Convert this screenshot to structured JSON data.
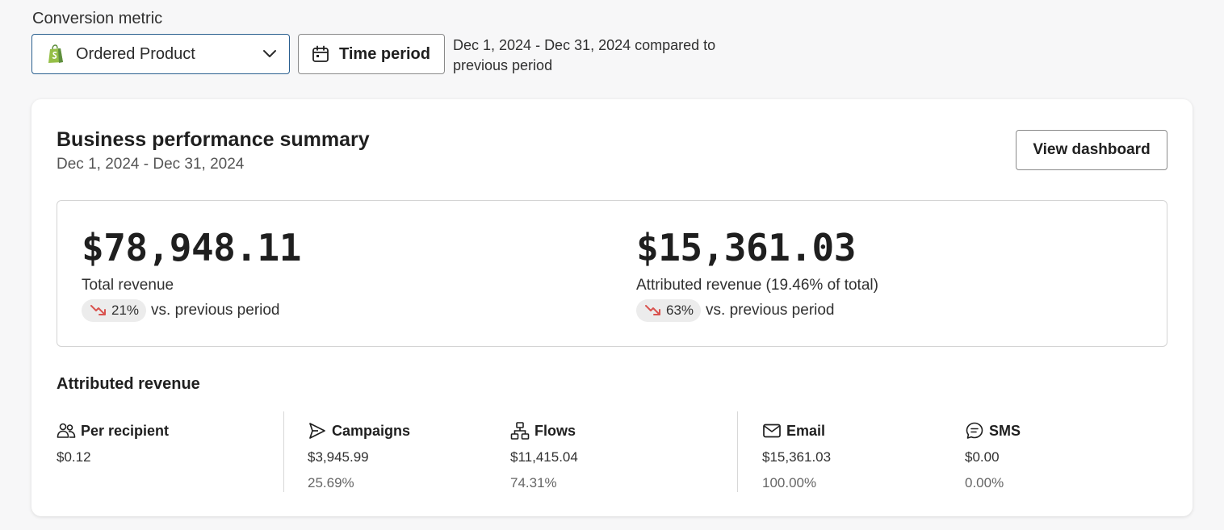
{
  "conversion_metric": {
    "label": "Conversion metric",
    "selected": "Ordered Product",
    "icon": "shopify-bag-icon"
  },
  "time_period": {
    "button_label": "Time period",
    "range_text": "Dec 1, 2024 - Dec 31, 2024 compared to previous period"
  },
  "summary": {
    "title": "Business performance summary",
    "date_range": "Dec 1, 2024 - Dec 31, 2024",
    "view_dashboard_label": "View dashboard",
    "kpis": [
      {
        "amount": "$78,948.11",
        "name": "Total revenue",
        "change": "21%",
        "direction": "down",
        "compare": "vs. previous period"
      },
      {
        "amount": "$15,361.03",
        "name": "Attributed revenue (19.46% of total)",
        "change": "63%",
        "direction": "down",
        "compare": "vs. previous period"
      }
    ],
    "attributed": {
      "title": "Attributed revenue",
      "columns": [
        {
          "label": "Per recipient",
          "icon": "people-icon",
          "value": "$0.12",
          "percent": ""
        },
        {
          "label": "Campaigns",
          "icon": "send-icon",
          "value": "$3,945.99",
          "percent": "25.69%"
        },
        {
          "label": "Flows",
          "icon": "flow-icon",
          "value": "$11,415.04",
          "percent": "74.31%"
        },
        {
          "label": "Email",
          "icon": "email-icon",
          "value": "$15,361.03",
          "percent": "100.00%"
        },
        {
          "label": "SMS",
          "icon": "sms-icon",
          "value": "$0.00",
          "percent": "0.00%"
        }
      ]
    }
  },
  "colors": {
    "down_arrow": "#d9534f",
    "select_border": "#2a5f8f",
    "shopify_green": "#5e8e3e"
  }
}
